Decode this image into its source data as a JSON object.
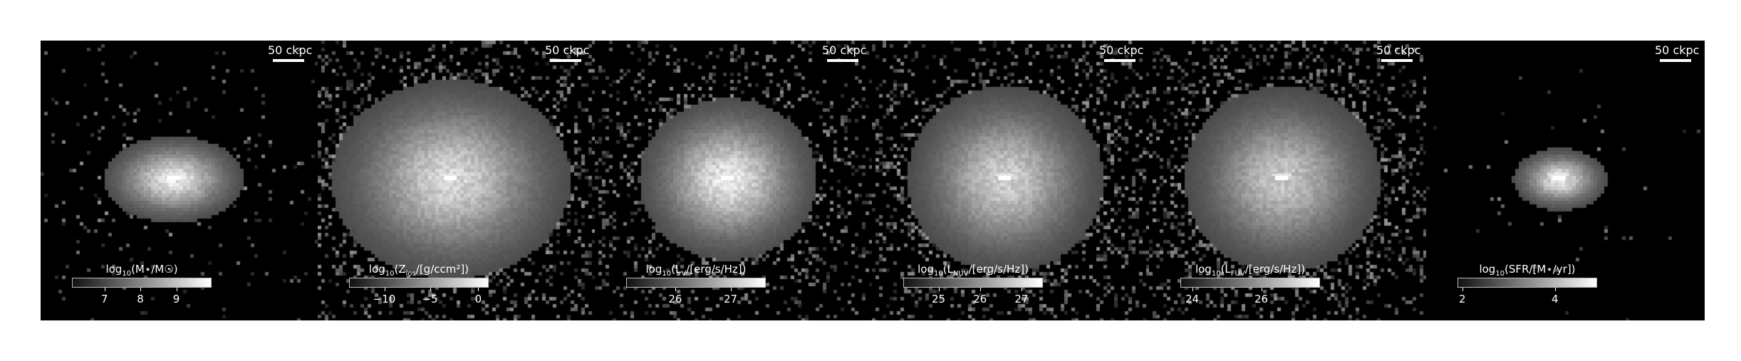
{
  "panels": [
    {
      "scalebar": "50 ckpc",
      "colorbar": {
        "prefix": "log",
        "base": "10",
        "label_main": "(M⋆/M☉)",
        "label_sub": "",
        "label_tail": "",
        "ticks": [
          "7",
          "8",
          "9"
        ],
        "tick_fractions": [
          0.23,
          0.49,
          0.75
        ]
      },
      "image": {
        "core_brightness": 1.0,
        "spread": 0.07,
        "halo_density": 0.15,
        "elongation": 1.6
      }
    },
    {
      "scalebar": "50 ckpc",
      "colorbar": {
        "prefix": "log",
        "base": "10",
        "label_main": "(Z",
        "label_sub": "los",
        "label_tail": "/[g/ccm²])",
        "ticks": [
          "−10",
          "−5",
          "0"
        ],
        "tick_fractions": [
          0.25,
          0.58,
          0.93
        ]
      },
      "image": {
        "core_brightness": 0.9,
        "spread": 0.16,
        "halo_density": 0.5,
        "elongation": 1.2
      }
    },
    {
      "scalebar": "50 ckpc",
      "colorbar": {
        "prefix": "log",
        "base": "10",
        "label_main": "(L",
        "label_sub": "V",
        "label_tail": "/[erg/s/Hz])",
        "ticks": [
          "26",
          "27"
        ],
        "tick_fractions": [
          0.35,
          0.75
        ]
      },
      "image": {
        "core_brightness": 1.0,
        "spread": 0.13,
        "halo_density": 0.45,
        "elongation": 1.1
      }
    },
    {
      "scalebar": "50 ckpc",
      "colorbar": {
        "prefix": "log",
        "base": "10",
        "label_main": "(L",
        "label_sub": "NUV",
        "label_tail": "/[erg/s/Hz])",
        "ticks": [
          "25",
          "26",
          "27"
        ],
        "tick_fractions": [
          0.25,
          0.55,
          0.85
        ]
      },
      "image": {
        "core_brightness": 0.85,
        "spread": 0.15,
        "halo_density": 0.55,
        "elongation": 1.05
      }
    },
    {
      "scalebar": "50 ckpc",
      "colorbar": {
        "prefix": "log",
        "base": "10",
        "label_main": "(L",
        "label_sub": "FUV",
        "label_tail": "/[erg/s/Hz])",
        "ticks": [
          "24",
          "26"
        ],
        "tick_fractions": [
          0.08,
          0.58
        ]
      },
      "image": {
        "core_brightness": 0.8,
        "spread": 0.15,
        "halo_density": 0.55,
        "elongation": 1.05
      }
    },
    {
      "scalebar": "50 ckpc",
      "colorbar": {
        "prefix": "log",
        "base": "10",
        "label_main": "(SFR/[M⋆/yr])",
        "label_sub": "",
        "label_tail": "",
        "ticks": [
          "2",
          "4"
        ],
        "tick_fractions": [
          0.03,
          0.7
        ]
      },
      "image": {
        "core_brightness": 1.0,
        "spread": 0.05,
        "halo_density": 0.04,
        "elongation": 1.5
      }
    }
  ]
}
